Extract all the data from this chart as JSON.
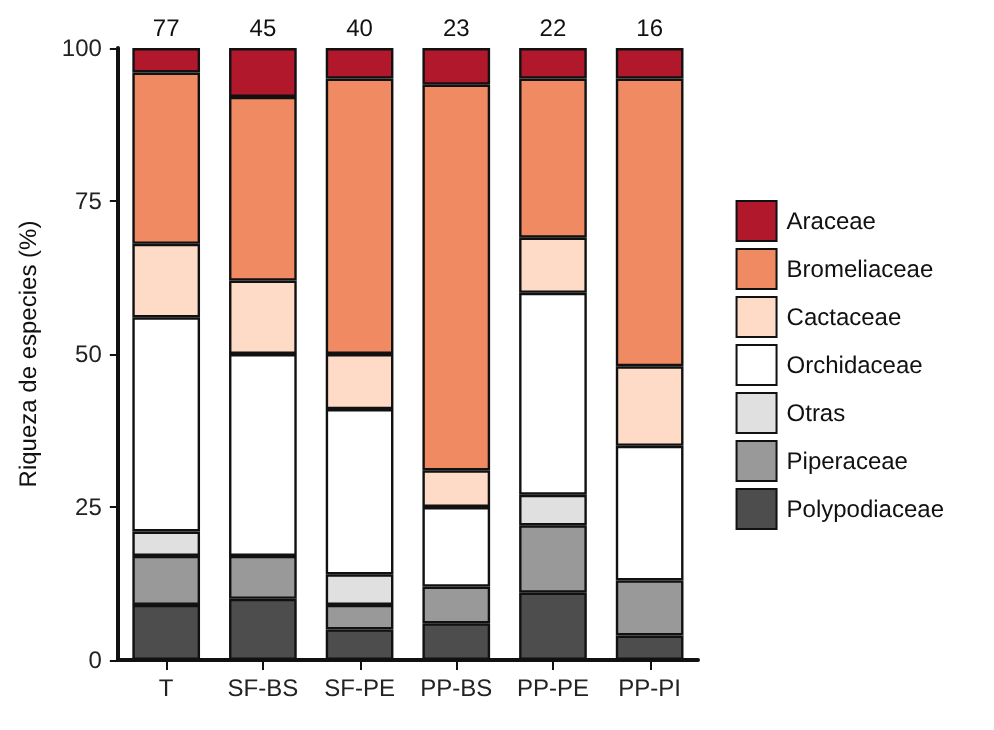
{
  "chart_data": {
    "type": "bar",
    "stacked": true,
    "ylabel": "Riqueza de especies (%)",
    "categories": [
      "T",
      "SF-BS",
      "SF-PE",
      "PP-BS",
      "PP-PE",
      "PP-PI"
    ],
    "series": [
      {
        "name": "Polypodiaceae",
        "color": "#4d4d4d",
        "values": [
          9,
          10,
          5,
          6,
          11,
          4
        ]
      },
      {
        "name": "Piperaceae",
        "color": "#999999",
        "values": [
          8,
          7,
          4,
          6,
          11,
          9
        ]
      },
      {
        "name": "Otras",
        "color": "#e0e0e0",
        "values": [
          4,
          0,
          5,
          0,
          5,
          0
        ]
      },
      {
        "name": "Orchidaceae",
        "color": "#ffffff",
        "values": [
          35,
          33,
          27,
          13,
          33,
          22
        ]
      },
      {
        "name": "Cactaceae",
        "color": "#fddbc7",
        "values": [
          12,
          12,
          9,
          6,
          9,
          13
        ]
      },
      {
        "name": "Bromeliaceae",
        "color": "#ef8a62",
        "values": [
          28,
          30,
          45,
          63,
          26,
          47
        ]
      },
      {
        "name": "Araceae",
        "color": "#b2182b",
        "values": [
          4,
          8,
          5,
          6,
          5,
          5
        ]
      }
    ],
    "annotations": [
      {
        "text": "77",
        "x": "T",
        "y": 100
      },
      {
        "text": "45",
        "x": "SF-BS",
        "y": 100
      },
      {
        "text": "40",
        "x": "SF-PE",
        "y": 100
      },
      {
        "text": "23",
        "x": "PP-BS",
        "y": 100
      },
      {
        "text": "22",
        "x": "PP-PE",
        "y": 100
      },
      {
        "text": "16",
        "x": "PP-PI",
        "y": 100
      }
    ],
    "ylim": [
      0,
      100
    ],
    "yticks": [
      0,
      25,
      50,
      75,
      100
    ],
    "grid": false,
    "legend": "right"
  }
}
